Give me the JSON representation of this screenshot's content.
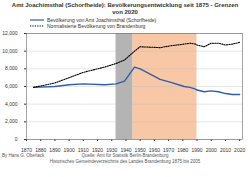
{
  "chart_data": {
    "type": "line",
    "title": "Amt Joachimsthal (Schorfheide): Bevölkerungsentwicklung seit 1875 - Grenzen von 2020",
    "x": [
      1875,
      1890,
      1900,
      1910,
      1925,
      1933,
      1939,
      1946,
      1950,
      1964,
      1971,
      1981,
      1985,
      1989,
      1990,
      1995,
      2000,
      2005,
      2010,
      2015,
      2020
    ],
    "series": [
      {
        "name": "Bevölkerung von Amt Joachimsthal (Schorfheide)",
        "color": "#2f5fa8",
        "line_style": "solid",
        "values": [
          5900,
          6000,
          6200,
          6300,
          6200,
          6300,
          6600,
          8200,
          8000,
          6800,
          6500,
          6000,
          5900,
          5700,
          5600,
          5400,
          5500,
          5400,
          5200,
          5100,
          5100
        ]
      },
      {
        "name": "Normalisierte Bevölkerung von Brandenburg",
        "color": "#000000",
        "line_style": "dotted",
        "values": [
          5900,
          6400,
          7000,
          7600,
          8200,
          8600,
          9000,
          10000,
          10500,
          10400,
          10600,
          10800,
          10900,
          10800,
          10700,
          10500,
          10900,
          10900,
          10700,
          10800,
          11000
        ]
      }
    ],
    "periods": [
      {
        "start": 1933,
        "end": 1945,
        "color": "#b4b4b4"
      },
      {
        "start": 1945,
        "end": 1990,
        "color": "#f7c7a6"
      }
    ],
    "xlim": [
      1870,
      2022
    ],
    "xticks": [
      1870,
      1880,
      1890,
      1900,
      1910,
      1920,
      1930,
      1940,
      1950,
      1960,
      1970,
      1980,
      1990,
      2000,
      2010,
      2020
    ],
    "ylim": [
      0,
      12000
    ],
    "yticks": [
      0,
      {
        "value": 2000,
        "label": "2,000"
      },
      {
        "value": 4000,
        "label": "4,000"
      },
      {
        "value": 6000,
        "label": "6,000"
      },
      {
        "value": 8000,
        "label": "8,000"
      },
      {
        "value": 10000,
        "label": "10,000"
      },
      {
        "value": 12000,
        "label": "12,000"
      }
    ],
    "grid": true,
    "source": [
      "Quelle: Amt für Statistik Berlin-Brandenburg",
      "Historisches Gemeindeverzeichnis des Landes Brandenburg 1875 bis 2005"
    ],
    "author": "By Hans G. Oberlack"
  }
}
